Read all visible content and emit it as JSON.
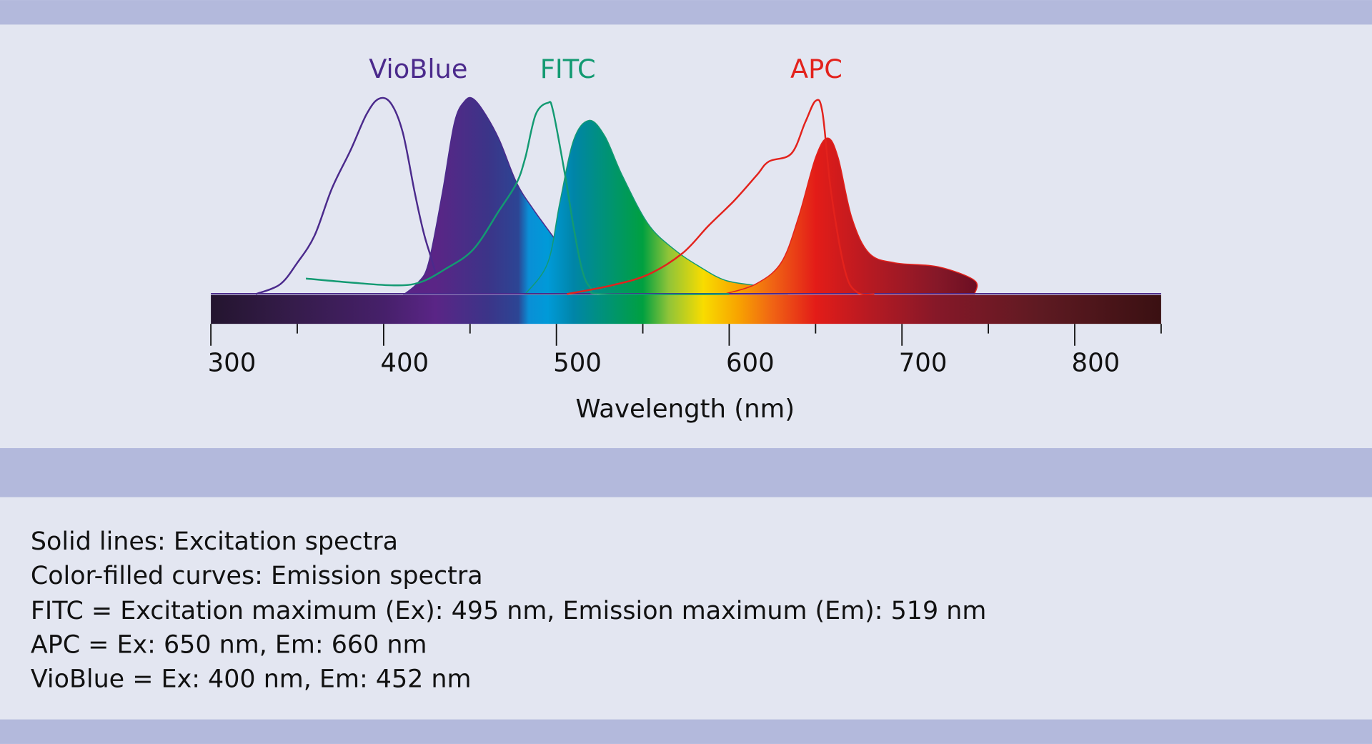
{
  "chart_data": {
    "type": "line",
    "xlabel": "Wavelength (nm)",
    "ylabel": "",
    "xlim": [
      300,
      850
    ],
    "ylim": [
      0,
      1
    ],
    "xticks": [
      300,
      400,
      500,
      600,
      700,
      800
    ],
    "grid": false,
    "colors": {
      "VioBlue": "#4b2a8c",
      "FITC": "#139a72",
      "APC": "#e3221c"
    },
    "labels": [
      {
        "text": "VioBlue",
        "color": "#4b2a8c"
      },
      {
        "text": "FITC",
        "color": "#139a72"
      },
      {
        "text": "APC",
        "color": "#e3221c"
      }
    ],
    "series": [
      {
        "name": "VioBlue",
        "kind": "excitation",
        "points": [
          [
            326,
            0
          ],
          [
            340,
            0.05
          ],
          [
            350,
            0.16
          ],
          [
            360,
            0.3
          ],
          [
            370,
            0.54
          ],
          [
            381,
            0.74
          ],
          [
            390,
            0.92
          ],
          [
            397,
            1.0
          ],
          [
            404,
            0.98
          ],
          [
            411,
            0.83
          ],
          [
            418,
            0.52
          ],
          [
            423,
            0.32
          ],
          [
            427,
            0.2
          ],
          [
            431,
            0.08
          ]
        ]
      },
      {
        "name": "VioBlue",
        "kind": "emission",
        "points": [
          [
            412,
            0
          ],
          [
            420,
            0.06
          ],
          [
            426,
            0.16
          ],
          [
            434,
            0.52
          ],
          [
            441,
            0.88
          ],
          [
            447,
            0.99
          ],
          [
            452,
            1.0
          ],
          [
            459,
            0.92
          ],
          [
            467,
            0.79
          ],
          [
            477,
            0.57
          ],
          [
            487,
            0.43
          ],
          [
            500,
            0.27
          ],
          [
            507,
            0.16
          ],
          [
            515,
            0.07
          ],
          [
            523,
            0
          ]
        ]
      },
      {
        "name": "FITC",
        "kind": "excitation",
        "points": [
          [
            355,
            0.08
          ],
          [
            380,
            0.06
          ],
          [
            406,
            0.045
          ],
          [
            421,
            0.06
          ],
          [
            436,
            0.13
          ],
          [
            452,
            0.23
          ],
          [
            467,
            0.43
          ],
          [
            477,
            0.57
          ],
          [
            482,
            0.7
          ],
          [
            488,
            0.92
          ],
          [
            495,
            0.98
          ],
          [
            498,
            0.94
          ],
          [
            505,
            0.61
          ],
          [
            510,
            0.34
          ],
          [
            515,
            0.12
          ],
          [
            520,
            0.03
          ],
          [
            528,
            0
          ],
          [
            600,
            0
          ]
        ]
      },
      {
        "name": "FITC",
        "kind": "emission",
        "points": [
          [
            482,
            0
          ],
          [
            495,
            0.16
          ],
          [
            502,
            0.47
          ],
          [
            510,
            0.79
          ],
          [
            519,
            0.89
          ],
          [
            528,
            0.81
          ],
          [
            538,
            0.61
          ],
          [
            553,
            0.36
          ],
          [
            568,
            0.23
          ],
          [
            583,
            0.14
          ],
          [
            598,
            0.07
          ],
          [
            618,
            0.04
          ],
          [
            634,
            0
          ]
        ]
      },
      {
        "name": "APC",
        "kind": "excitation",
        "points": [
          [
            506,
            0
          ],
          [
            532,
            0.045
          ],
          [
            553,
            0.1
          ],
          [
            573,
            0.21
          ],
          [
            588,
            0.35
          ],
          [
            603,
            0.48
          ],
          [
            616,
            0.61
          ],
          [
            623,
            0.68
          ],
          [
            636,
            0.72
          ],
          [
            644,
            0.88
          ],
          [
            650,
            0.99
          ],
          [
            654,
            0.93
          ],
          [
            659,
            0.52
          ],
          [
            667,
            0.12
          ],
          [
            674,
            0.01
          ],
          [
            684,
            0
          ]
        ]
      },
      {
        "name": "APC",
        "kind": "emission",
        "points": [
          [
            597,
            0
          ],
          [
            615,
            0.05
          ],
          [
            630,
            0.16
          ],
          [
            640,
            0.39
          ],
          [
            650,
            0.7
          ],
          [
            657,
            0.8
          ],
          [
            663,
            0.7
          ],
          [
            671,
            0.39
          ],
          [
            681,
            0.21
          ],
          [
            696,
            0.16
          ],
          [
            721,
            0.14
          ],
          [
            742,
            0.07
          ],
          [
            742,
            0
          ]
        ]
      }
    ]
  },
  "legend_lines": [
    "Solid lines: Excitation spectra",
    "Color-filled curves: Emission spectra",
    "FITC = Excitation maximum (Ex): 495 nm, Emission maximum (Em): 519 nm",
    "APC = Ex: 650 nm, Em: 660 nm",
    "VioBlue = Ex: 400 nm, Em: 452 nm"
  ]
}
